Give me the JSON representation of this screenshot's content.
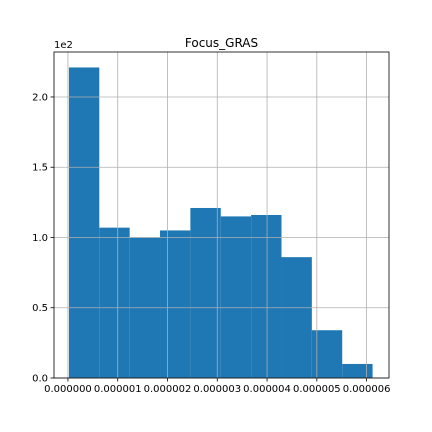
{
  "chart_data": {
    "type": "histogram",
    "title": "Focus_GRAS",
    "y_offset_label": "1e2",
    "bins": [
      2e-08,
      6.3e-07,
      1.24e-06,
      1.85e-06,
      2.46e-06,
      3.07e-06,
      3.68e-06,
      4.29e-06,
      4.9e-06,
      5.51e-06,
      6.12e-06
    ],
    "counts": [
      221,
      107,
      100,
      105,
      121,
      115,
      116,
      86,
      34,
      10
    ],
    "color": "#1f77b4",
    "xlim": [
      -2.8e-07,
      6.45e-06
    ],
    "ylim": [
      0,
      232
    ],
    "xticks": [
      {
        "value": 0,
        "label": "0.000000"
      },
      {
        "value": 1e-06,
        "label": "0.000001"
      },
      {
        "value": 2e-06,
        "label": "0.000002"
      },
      {
        "value": 3e-06,
        "label": "0.000003"
      },
      {
        "value": 4e-06,
        "label": "0.000004"
      },
      {
        "value": 5e-06,
        "label": "0.000005"
      },
      {
        "value": 6e-06,
        "label": "0.000006"
      }
    ],
    "yticks": [
      {
        "value": 0,
        "label": "0.0"
      },
      {
        "value": 50,
        "label": "0.5"
      },
      {
        "value": 100,
        "label": "1.0"
      },
      {
        "value": 150,
        "label": "1.5"
      },
      {
        "value": 200,
        "label": "2.0"
      }
    ],
    "grid": true
  }
}
